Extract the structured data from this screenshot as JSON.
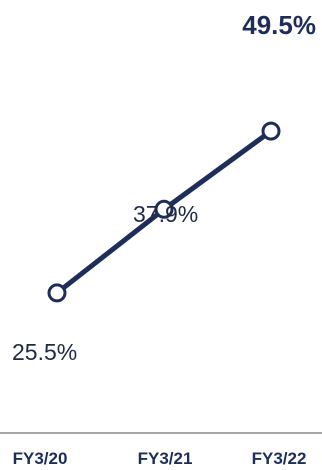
{
  "chart_data": {
    "type": "line",
    "categories": [
      "FY3/20",
      "FY3/21",
      "FY3/22"
    ],
    "series": [
      {
        "values": [
          25.5,
          37.9,
          49.5
        ]
      }
    ],
    "data_labels": [
      "25.5%",
      "37.9%",
      "49.5%"
    ],
    "highlighted_label_index": 2,
    "title": "",
    "xlabel": "",
    "ylabel": "",
    "grid": false,
    "colors": {
      "line": "#1e2d5a",
      "marker_fill": "#ffffff",
      "axis": "#888888",
      "label_text": "#1f2a44"
    }
  }
}
